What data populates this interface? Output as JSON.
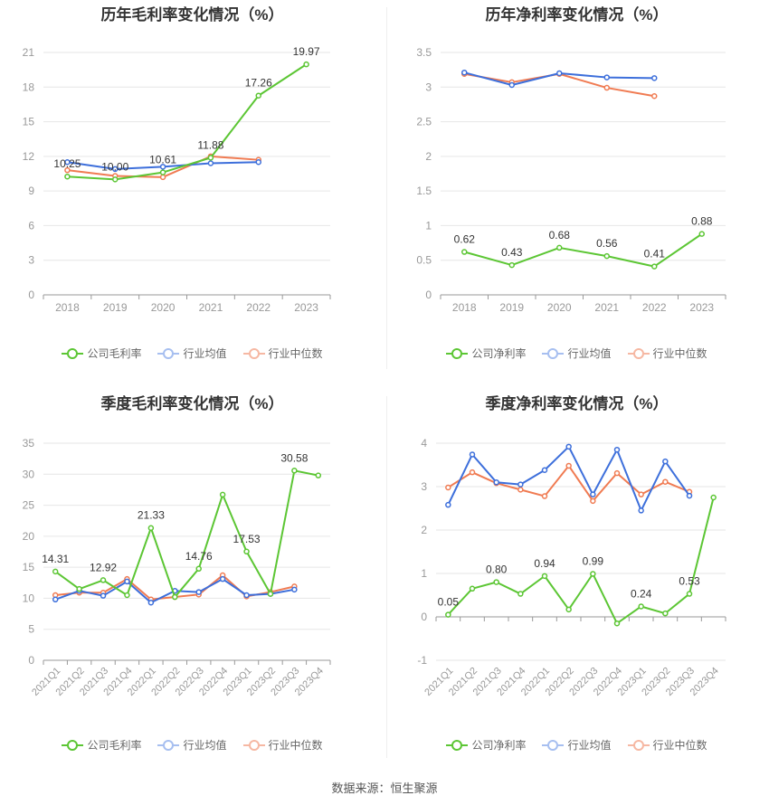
{
  "footer": "数据来源：恒生聚源",
  "legend_labels": {
    "gross": [
      "公司毛利率",
      "行业均值",
      "行业中位数"
    ],
    "net": [
      "公司净利率",
      "行业均值",
      "行业中位数"
    ]
  },
  "colors": {
    "company": "#5cc634",
    "avg": "#3d6fdb",
    "median": "#f07b52",
    "grid": "#e6e6e6",
    "axis": "#999999",
    "tick": "#999999",
    "label": "#333333"
  },
  "chart_data": [
    {
      "type": "line",
      "title": "历年毛利率变化情况（%）",
      "categories": [
        "2018",
        "2019",
        "2020",
        "2021",
        "2022",
        "2023"
      ],
      "ylim": [
        0,
        21
      ],
      "yticks": [
        0,
        3,
        6,
        9,
        12,
        15,
        18,
        21
      ],
      "series": [
        {
          "name": "公司毛利率",
          "values": [
            10.25,
            10.0,
            10.61,
            11.88,
            17.26,
            19.97
          ],
          "labels": [
            "10.25",
            "10.00",
            "10.61",
            "11.88",
            "17.26",
            "19.97"
          ]
        },
        {
          "name": "行业均值",
          "values": [
            11.5,
            10.9,
            11.1,
            11.4,
            11.5,
            null
          ]
        },
        {
          "name": "行业中位数",
          "values": [
            10.8,
            10.3,
            10.2,
            12.0,
            11.7,
            null
          ]
        }
      ]
    },
    {
      "type": "line",
      "title": "历年净利率变化情况（%）",
      "categories": [
        "2018",
        "2019",
        "2020",
        "2021",
        "2022",
        "2023"
      ],
      "ylim": [
        0,
        3.5
      ],
      "yticks": [
        0,
        0.5,
        1,
        1.5,
        2,
        2.5,
        3,
        3.5
      ],
      "series": [
        {
          "name": "公司净利率",
          "values": [
            0.62,
            0.43,
            0.68,
            0.56,
            0.41,
            0.88
          ],
          "labels": [
            "0.62",
            "0.43",
            "0.68",
            "0.56",
            "0.41",
            "0.88"
          ]
        },
        {
          "name": "行业均值",
          "values": [
            3.21,
            3.03,
            3.2,
            3.14,
            3.13,
            null
          ]
        },
        {
          "name": "行业中位数",
          "values": [
            3.19,
            3.07,
            3.19,
            2.99,
            2.87,
            null
          ]
        }
      ]
    },
    {
      "type": "line",
      "title": "季度毛利率变化情况（%）",
      "categories": [
        "2021Q1",
        "2021Q2",
        "2021Q3",
        "2021Q4",
        "2022Q1",
        "2022Q2",
        "2022Q3",
        "2022Q4",
        "2023Q1",
        "2023Q2",
        "2023Q3",
        "2023Q4"
      ],
      "ylim": [
        0,
        35
      ],
      "yticks": [
        0,
        5,
        10,
        15,
        20,
        25,
        30,
        35
      ],
      "series": [
        {
          "name": "公司毛利率",
          "values": [
            14.31,
            11.5,
            12.92,
            10.5,
            21.33,
            10.2,
            14.76,
            26.7,
            17.53,
            10.7,
            30.58,
            29.8
          ],
          "labels": [
            "14.31",
            "",
            "12.92",
            "",
            "21.33",
            "",
            "14.76",
            "",
            "17.53",
            "",
            "30.58",
            ""
          ]
        },
        {
          "name": "行业均值",
          "values": [
            9.8,
            11.2,
            10.4,
            12.7,
            9.3,
            11.2,
            11.0,
            13.1,
            10.5,
            10.7,
            11.4,
            null
          ]
        },
        {
          "name": "行业中位数",
          "values": [
            10.5,
            10.9,
            10.9,
            13.1,
            9.8,
            10.2,
            10.6,
            13.7,
            10.3,
            11.0,
            11.9,
            null
          ]
        }
      ]
    },
    {
      "type": "line",
      "title": "季度净利率变化情况（%）",
      "categories": [
        "2021Q1",
        "2021Q2",
        "2021Q3",
        "2021Q4",
        "2022Q1",
        "2022Q2",
        "2022Q3",
        "2022Q4",
        "2023Q1",
        "2023Q2",
        "2023Q3",
        "2023Q4"
      ],
      "ylim": [
        -1,
        4
      ],
      "yticks": [
        -1,
        0,
        1,
        2,
        3,
        4
      ],
      "series": [
        {
          "name": "公司净利率",
          "values": [
            0.05,
            0.65,
            0.8,
            0.53,
            0.94,
            0.17,
            0.99,
            -0.15,
            0.24,
            0.08,
            0.53,
            2.75
          ],
          "labels": [
            "0.05",
            "",
            "0.80",
            "",
            "0.94",
            "",
            "0.99",
            "",
            "0.24",
            "",
            "0.53",
            ""
          ]
        },
        {
          "name": "行业均值",
          "values": [
            2.58,
            3.74,
            3.1,
            3.05,
            3.38,
            3.92,
            2.82,
            3.85,
            2.45,
            3.58,
            2.79,
            null
          ]
        },
        {
          "name": "行业中位数",
          "values": [
            2.98,
            3.33,
            3.08,
            2.93,
            2.78,
            3.48,
            2.67,
            3.31,
            2.82,
            3.11,
            2.88,
            null
          ]
        }
      ]
    }
  ]
}
